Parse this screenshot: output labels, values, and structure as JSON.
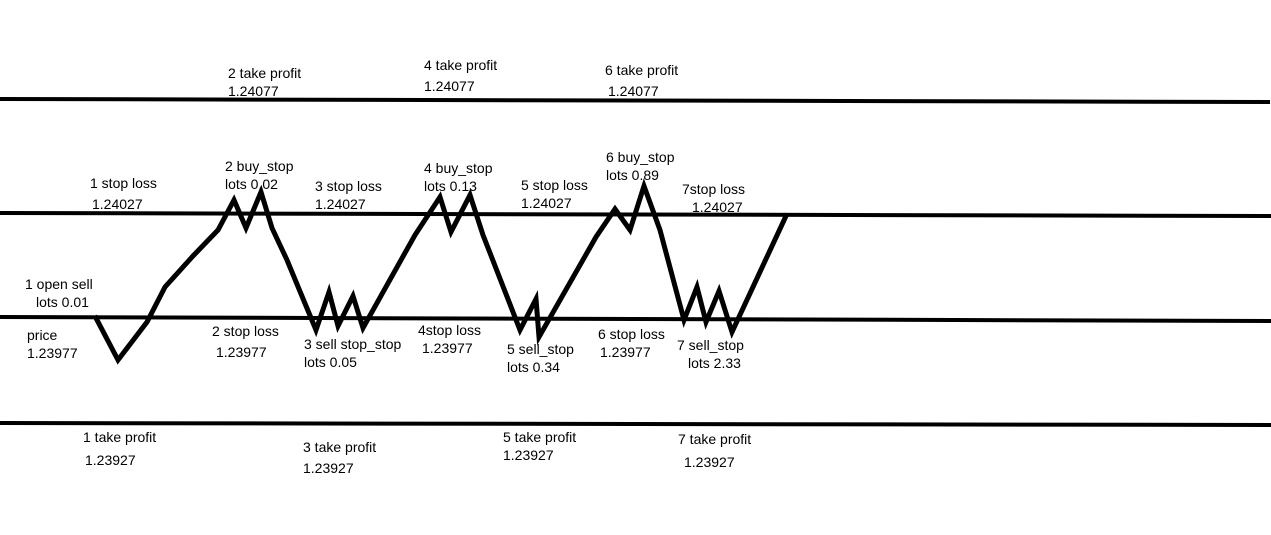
{
  "labels": {
    "tp2": [
      "2 take profit",
      "1.24077"
    ],
    "tp4": [
      "4 take profit",
      "1.24077"
    ],
    "tp6": [
      "6 take profit",
      "1.24077"
    ],
    "sl1": [
      "1 stop loss",
      "1.24027"
    ],
    "bs2": [
      "2 buy_stop",
      "lots 0.02"
    ],
    "sl3": [
      "3 stop loss",
      "1.24027"
    ],
    "bs4": [
      "4 buy_stop",
      "lots 0.13"
    ],
    "sl5": [
      "5 stop loss",
      "1.24027"
    ],
    "bs6": [
      "6 buy_stop",
      "lots 0.89"
    ],
    "sl7": [
      "7stop loss",
      "1.24027"
    ],
    "open1": [
      "1 open sell",
      "lots 0.01"
    ],
    "price": [
      "price",
      "1.23977"
    ],
    "sl2": [
      "2 stop loss",
      "1.23977"
    ],
    "ss3": [
      "3 sell stop_stop",
      "lots 0.05"
    ],
    "sl4": [
      "4stop loss",
      "1.23977"
    ],
    "ss5": [
      "5 sell_stop",
      "lots 0.34"
    ],
    "sl6": [
      "6 stop loss",
      "1.23977"
    ],
    "ss7": [
      "7 sell_stop",
      "lots 2.33"
    ],
    "tp1": [
      "1 take profit",
      "1.23927"
    ],
    "tp3": [
      "3 take profit",
      "1.23927"
    ],
    "tp5": [
      "5 take profit",
      "1.23927"
    ],
    "tp7": [
      "7 take profit",
      "1.23927"
    ]
  },
  "colors": {
    "line": "#000000",
    "background": "#ffffff"
  }
}
